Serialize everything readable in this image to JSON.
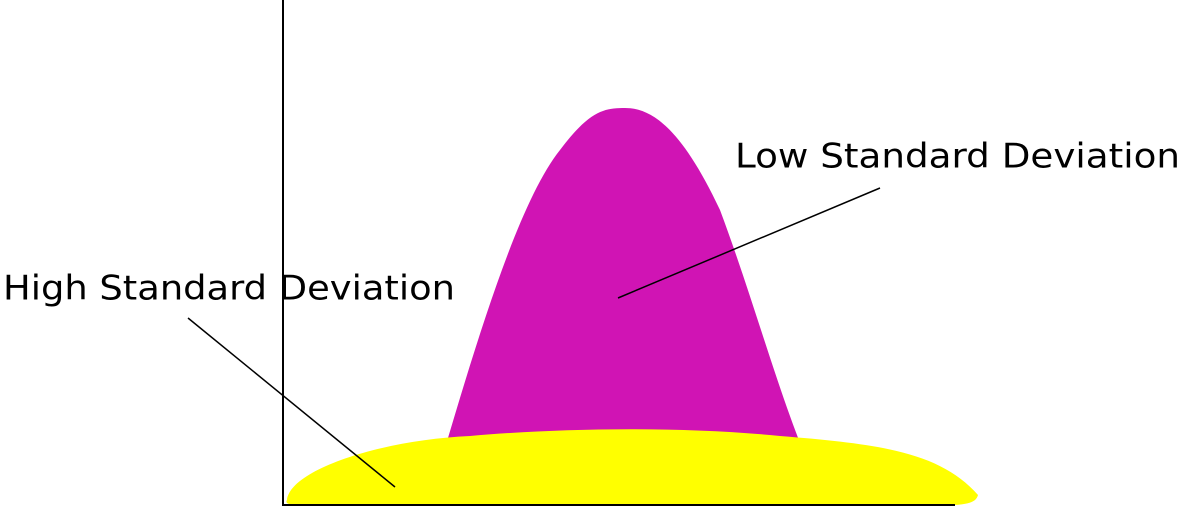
{
  "labels": {
    "low": "Low Standard Deviation",
    "high": "High Standard Deviation"
  }
}
